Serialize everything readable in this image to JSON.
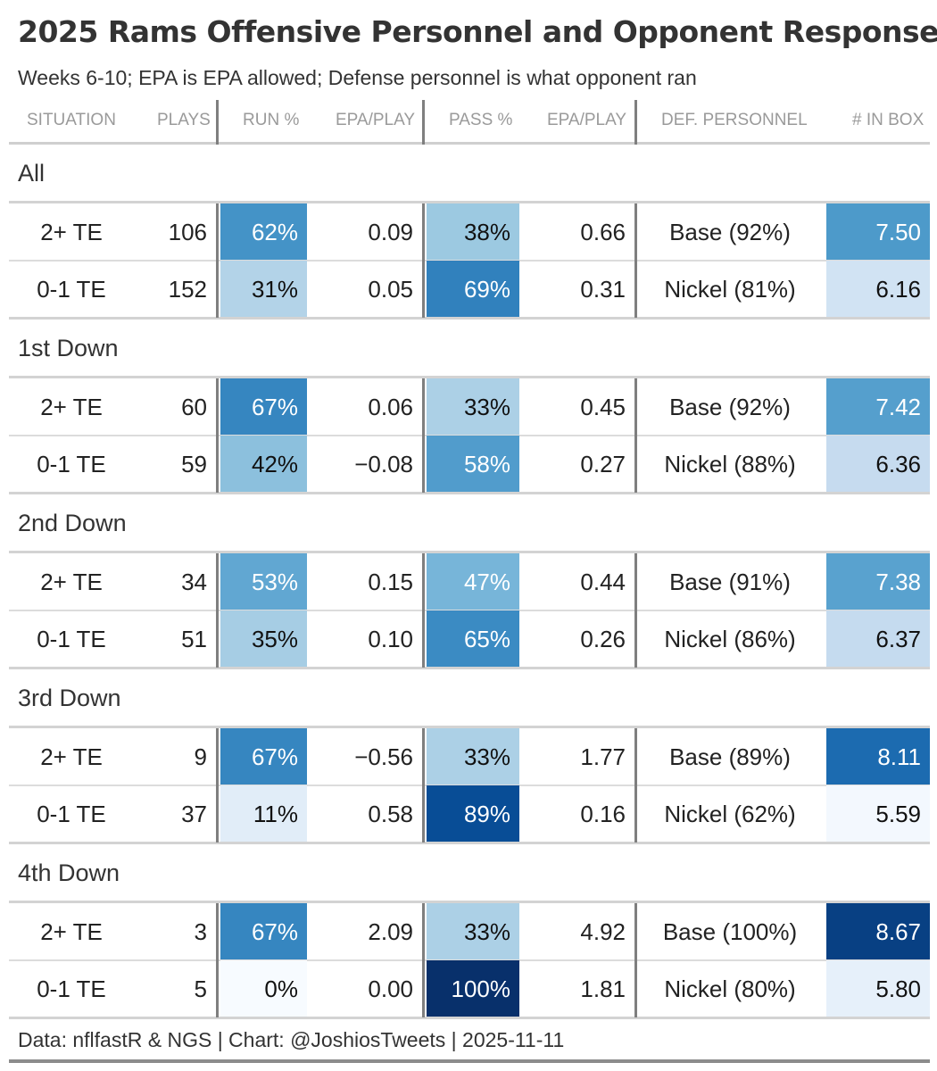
{
  "title": "2025 Rams Offensive Personnel and Opponent Response",
  "subtitle": "Weeks 6-10; EPA is EPA allowed; Defense personnel is what opponent ran",
  "columns": {
    "situation": "SITUATION",
    "plays": "PLAYS",
    "run_pct": "RUN %",
    "run_epa": "EPA/PLAY",
    "pass_pct": "PASS %",
    "pass_epa": "EPA/PLAY",
    "def_personnel": "DEF. PERSONNEL",
    "in_box": "# IN BOX"
  },
  "footer": "Data: nflfastR & NGS | Chart: @JoshiosTweets | 2025-11-11",
  "chart_data": {
    "type": "table",
    "title": "2025 Rams Offensive Personnel and Opponent Response",
    "groups": [
      {
        "label": "All",
        "rows": [
          {
            "situation": "2+ TE",
            "plays": "106",
            "run_pct": "62%",
            "run_pct_value": 62,
            "run_epa": "0.09",
            "pass_pct": "38%",
            "pass_pct_value": 38,
            "pass_epa": "0.66",
            "def_personnel": "Base (92%)",
            "in_box": "7.50",
            "in_box_value": 7.5
          },
          {
            "situation": "0-1 TE",
            "plays": "152",
            "run_pct": "31%",
            "run_pct_value": 31,
            "run_epa": "0.05",
            "pass_pct": "69%",
            "pass_pct_value": 69,
            "pass_epa": "0.31",
            "def_personnel": "Nickel (81%)",
            "in_box": "6.16",
            "in_box_value": 6.16
          }
        ]
      },
      {
        "label": "1st Down",
        "rows": [
          {
            "situation": "2+ TE",
            "plays": "60",
            "run_pct": "67%",
            "run_pct_value": 67,
            "run_epa": "0.06",
            "pass_pct": "33%",
            "pass_pct_value": 33,
            "pass_epa": "0.45",
            "def_personnel": "Base (92%)",
            "in_box": "7.42",
            "in_box_value": 7.42
          },
          {
            "situation": "0-1 TE",
            "plays": "59",
            "run_pct": "42%",
            "run_pct_value": 42,
            "run_epa": "−0.08",
            "pass_pct": "58%",
            "pass_pct_value": 58,
            "pass_epa": "0.27",
            "def_personnel": "Nickel (88%)",
            "in_box": "6.36",
            "in_box_value": 6.36
          }
        ]
      },
      {
        "label": "2nd Down",
        "rows": [
          {
            "situation": "2+ TE",
            "plays": "34",
            "run_pct": "53%",
            "run_pct_value": 53,
            "run_epa": "0.15",
            "pass_pct": "47%",
            "pass_pct_value": 47,
            "pass_epa": "0.44",
            "def_personnel": "Base (91%)",
            "in_box": "7.38",
            "in_box_value": 7.38
          },
          {
            "situation": "0-1 TE",
            "plays": "51",
            "run_pct": "35%",
            "run_pct_value": 35,
            "run_epa": "0.10",
            "pass_pct": "65%",
            "pass_pct_value": 65,
            "pass_epa": "0.26",
            "def_personnel": "Nickel (86%)",
            "in_box": "6.37",
            "in_box_value": 6.37
          }
        ]
      },
      {
        "label": "3rd Down",
        "rows": [
          {
            "situation": "2+ TE",
            "plays": "9",
            "run_pct": "67%",
            "run_pct_value": 67,
            "run_epa": "−0.56",
            "pass_pct": "33%",
            "pass_pct_value": 33,
            "pass_epa": "1.77",
            "def_personnel": "Base (89%)",
            "in_box": "8.11",
            "in_box_value": 8.11
          },
          {
            "situation": "0-1 TE",
            "plays": "37",
            "run_pct": "11%",
            "run_pct_value": 11,
            "run_epa": "0.58",
            "pass_pct": "89%",
            "pass_pct_value": 89,
            "pass_epa": "0.16",
            "def_personnel": "Nickel (62%)",
            "in_box": "5.59",
            "in_box_value": 5.59
          }
        ]
      },
      {
        "label": "4th Down",
        "rows": [
          {
            "situation": "2+ TE",
            "plays": "3",
            "run_pct": "67%",
            "run_pct_value": 67,
            "run_epa": "2.09",
            "pass_pct": "33%",
            "pass_pct_value": 33,
            "pass_epa": "4.92",
            "def_personnel": "Base (100%)",
            "in_box": "8.67",
            "in_box_value": 8.67
          },
          {
            "situation": "0-1 TE",
            "plays": "5",
            "run_pct": "0%",
            "run_pct_value": 0,
            "run_epa": "0.00",
            "pass_pct": "100%",
            "pass_pct_value": 100,
            "pass_epa": "1.81",
            "def_personnel": "Nickel (80%)",
            "in_box": "5.80",
            "in_box_value": 5.8
          }
        ]
      }
    ],
    "color_scale": {
      "pct_range": [
        0,
        100
      ],
      "box_range": [
        5.59,
        8.67
      ],
      "low_color": "#f7fbff",
      "high_color": "#08306b"
    }
  }
}
